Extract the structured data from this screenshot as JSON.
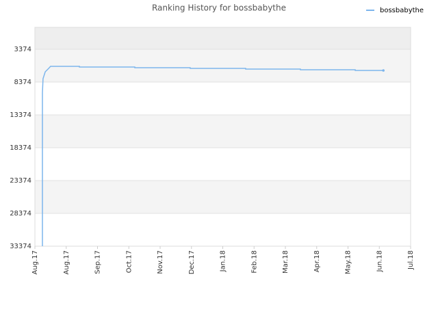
{
  "chart_data": {
    "type": "line",
    "title": "Ranking History for bossbabythe",
    "x": [
      0.24,
      0.24,
      0.26,
      0.33,
      0.44,
      0.5,
      1.42,
      1.42,
      3.19,
      3.19,
      4.96,
      4.96,
      6.73,
      6.73,
      8.48,
      8.48,
      10.23,
      10.23,
      11.13
    ],
    "series": [
      {
        "name": "bossbabythe",
        "color": "#7cb5ec",
        "values": [
          33374,
          10041,
          7853,
          6811,
          6290,
          5978,
          5978,
          6082,
          6082,
          6186,
          6186,
          6290,
          6290,
          6395,
          6395,
          6499,
          6499,
          6603,
          6603
        ]
      }
    ],
    "xlim": [
      0,
      12
    ],
    "xticks": [
      {
        "value": 0,
        "label": "Aug.17"
      },
      {
        "value": 1,
        "label": "Aug.17"
      },
      {
        "value": 2,
        "label": "Sep.17"
      },
      {
        "value": 3,
        "label": "Oct.17"
      },
      {
        "value": 4,
        "label": "Nov.17"
      },
      {
        "value": 5,
        "label": "Dec.17"
      },
      {
        "value": 6,
        "label": "Jan.18"
      },
      {
        "value": 7,
        "label": "Feb.18"
      },
      {
        "value": 8,
        "label": "Mar.18"
      },
      {
        "value": 9,
        "label": "Apr.18"
      },
      {
        "value": 10,
        "label": "May.18"
      },
      {
        "value": 11,
        "label": "Jun.18"
      },
      {
        "value": 12,
        "label": "Jul.18"
      }
    ],
    "ylim": [
      33374,
      41
    ],
    "yticks": [
      3374,
      8374,
      13374,
      18374,
      23374,
      28374,
      33374
    ],
    "grid": true,
    "legend": "top-right"
  }
}
